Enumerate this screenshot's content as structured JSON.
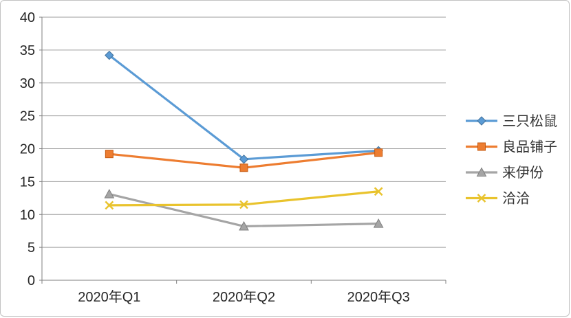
{
  "chart_data": {
    "type": "line",
    "title": "",
    "xlabel": "",
    "ylabel": "",
    "categories": [
      "2020年Q1",
      "2020年Q2",
      "2020年Q3"
    ],
    "series": [
      {
        "name": "三只松鼠",
        "values": [
          34.2,
          18.4,
          19.7
        ],
        "color": "#5B9BD5",
        "marker": "diamond",
        "marker_stroke": "#41719C"
      },
      {
        "name": "良品铺子",
        "values": [
          19.2,
          17.1,
          19.4
        ],
        "color": "#ED7D31",
        "marker": "square",
        "marker_stroke": "#C55A11"
      },
      {
        "name": "来伊份",
        "values": [
          13.1,
          8.2,
          8.6
        ],
        "color": "#A5A5A5",
        "marker": "triangle",
        "marker_stroke": "#7F7F7F"
      },
      {
        "name": "洽洽",
        "values": [
          11.4,
          11.5,
          13.5
        ],
        "color": "#E9C32D",
        "marker": "x",
        "marker_stroke": "#BF9000"
      }
    ],
    "ylim": [
      0,
      40
    ],
    "ytick_step": 5,
    "y_tick_labels": [
      "0",
      "5",
      "10",
      "15",
      "20",
      "25",
      "30",
      "35",
      "40"
    ],
    "grid": true,
    "legend_position": "right",
    "colors": {
      "gridline": "#9e9e9e",
      "axis_line": "#7f7f7f",
      "tick_label": "#262626",
      "legend_text": "#333333",
      "background": "#ffffff",
      "frame_border": "#c2c2c2"
    }
  }
}
